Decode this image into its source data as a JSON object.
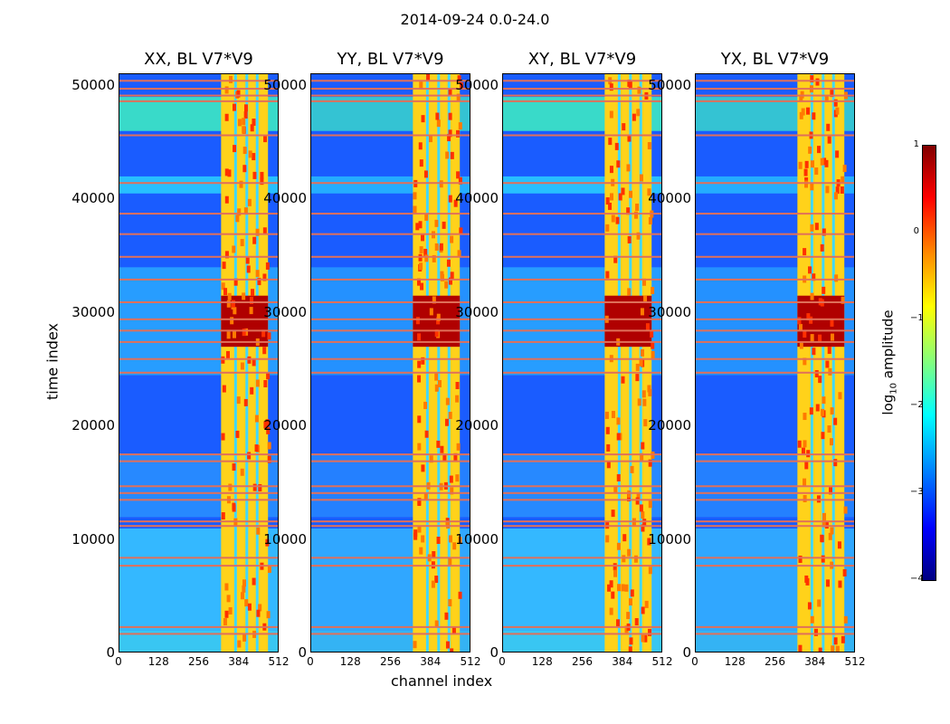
{
  "chart_data": {
    "type": "heatmap",
    "suptitle": "2014-09-24 0.0-24.0",
    "xlabel": "channel index",
    "ylabel": "time index",
    "xlim": [
      0,
      512
    ],
    "ylim": [
      0,
      51000
    ],
    "xticks": [
      "0",
      "128",
      "256",
      "384",
      "512"
    ],
    "yticks": [
      "0",
      "10000",
      "20000",
      "30000",
      "40000",
      "50000"
    ],
    "panels": [
      {
        "title": "XX, BL V7*V9",
        "key": "xx"
      },
      {
        "title": "YY, BL V7*V9",
        "key": "yy"
      },
      {
        "title": "XY, BL V7*V9",
        "key": "xy"
      },
      {
        "title": "YX, BL V7*V9",
        "key": "yx"
      }
    ],
    "colorbar": {
      "label_main": "log",
      "label_sub": "10",
      "label_rest": " amplitude",
      "range": [
        -4,
        1
      ],
      "ticks": [
        "1",
        "0",
        "−1",
        "−2",
        "−3",
        "−4"
      ],
      "colormap": "jet"
    },
    "rfi_channel_range": [
      325,
      475
    ],
    "burst_time_range": [
      27000,
      31500
    ]
  }
}
